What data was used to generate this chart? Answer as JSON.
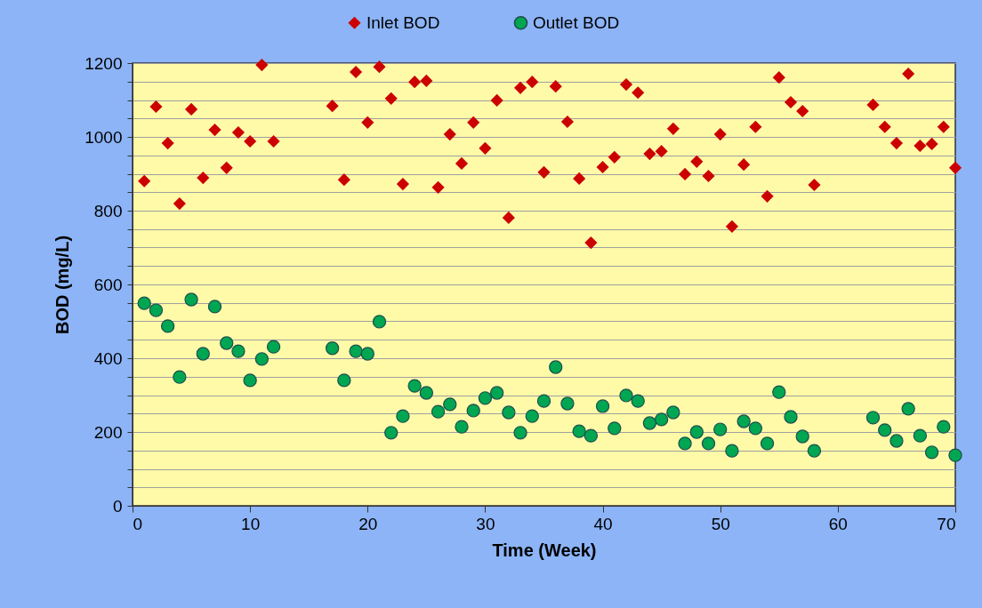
{
  "chart_data": {
    "type": "scatter",
    "xlabel": "Time (Week)",
    "ylabel": "BOD (mg/L)",
    "x": [
      1,
      2,
      3,
      4,
      5,
      6,
      7,
      8,
      9,
      10,
      11,
      12,
      17,
      18,
      19,
      20,
      21,
      22,
      23,
      24,
      25,
      26,
      27,
      28,
      29,
      30,
      31,
      32,
      33,
      34,
      35,
      36,
      37,
      38,
      39,
      40,
      41,
      42,
      43,
      44,
      45,
      46,
      47,
      48,
      49,
      50,
      51,
      52,
      53,
      54,
      55,
      56,
      57,
      58,
      63,
      64,
      65,
      66,
      67,
      68,
      69,
      70
    ],
    "series": [
      {
        "name": "Inlet BOD",
        "color": "#cc0000",
        "marker": "diamond",
        "values": [
          880,
          1082,
          983,
          819,
          1075,
          889,
          1019,
          916,
          1012,
          988,
          1195,
          988,
          1084,
          884,
          1176,
          1039,
          1190,
          1104,
          872,
          1149,
          1152,
          863,
          1007,
          928,
          1039,
          969,
          1099,
          781,
          1133,
          1149,
          904,
          1137,
          1041,
          887,
          713,
          918,
          945,
          1142,
          1120,
          954,
          961,
          1022,
          899,
          933,
          894,
          1007,
          757,
          925,
          1027,
          839,
          1161,
          1094,
          1070,
          870,
          1087,
          1027,
          983,
          1171,
          976,
          981,
          1027,
          916
        ]
      },
      {
        "name": "Outlet BOD",
        "color": "#00a651",
        "marker": "circle",
        "values": [
          549,
          530,
          487,
          349,
          559,
          412,
          540,
          441,
          419,
          340,
          398,
          431,
          427,
          340,
          419,
          412,
          499,
          198,
          243,
          325,
          306,
          255,
          275,
          214,
          258,
          292,
          306,
          253,
          198,
          243,
          284,
          376,
          277,
          202,
          190,
          270,
          210,
          299,
          284,
          224,
          234,
          253,
          169,
          200,
          169,
          207,
          149,
          229,
          210,
          169,
          308,
          241,
          188,
          149,
          239,
          205,
          176,
          263,
          190,
          145,
          214,
          137
        ]
      }
    ],
    "xlim": [
      0,
      70
    ],
    "xticks": [
      0,
      10,
      20,
      30,
      40,
      50,
      60,
      70
    ],
    "ylim": [
      0,
      1200
    ],
    "yticks": [
      0,
      {
        "value": 50,
        "label": null
      },
      {
        "value": 100,
        "label": null
      },
      {
        "value": 150,
        "label": null
      },
      200,
      {
        "value": 250,
        "label": null
      },
      {
        "value": 300,
        "label": null
      },
      {
        "value": 350,
        "label": null
      },
      400,
      {
        "value": 450,
        "label": null
      },
      {
        "value": 500,
        "label": null
      },
      {
        "value": 550,
        "label": null
      },
      600,
      {
        "value": 650,
        "label": null
      },
      {
        "value": 700,
        "label": null
      },
      {
        "value": 750,
        "label": null
      },
      800,
      {
        "value": 850,
        "label": null
      },
      {
        "value": 900,
        "label": null
      },
      {
        "value": 950,
        "label": null
      },
      1000,
      {
        "value": 1050,
        "label": null
      },
      {
        "value": 1100,
        "label": null
      },
      {
        "value": 1150,
        "label": null
      },
      1200
    ],
    "grid": "y",
    "legend": "top"
  }
}
